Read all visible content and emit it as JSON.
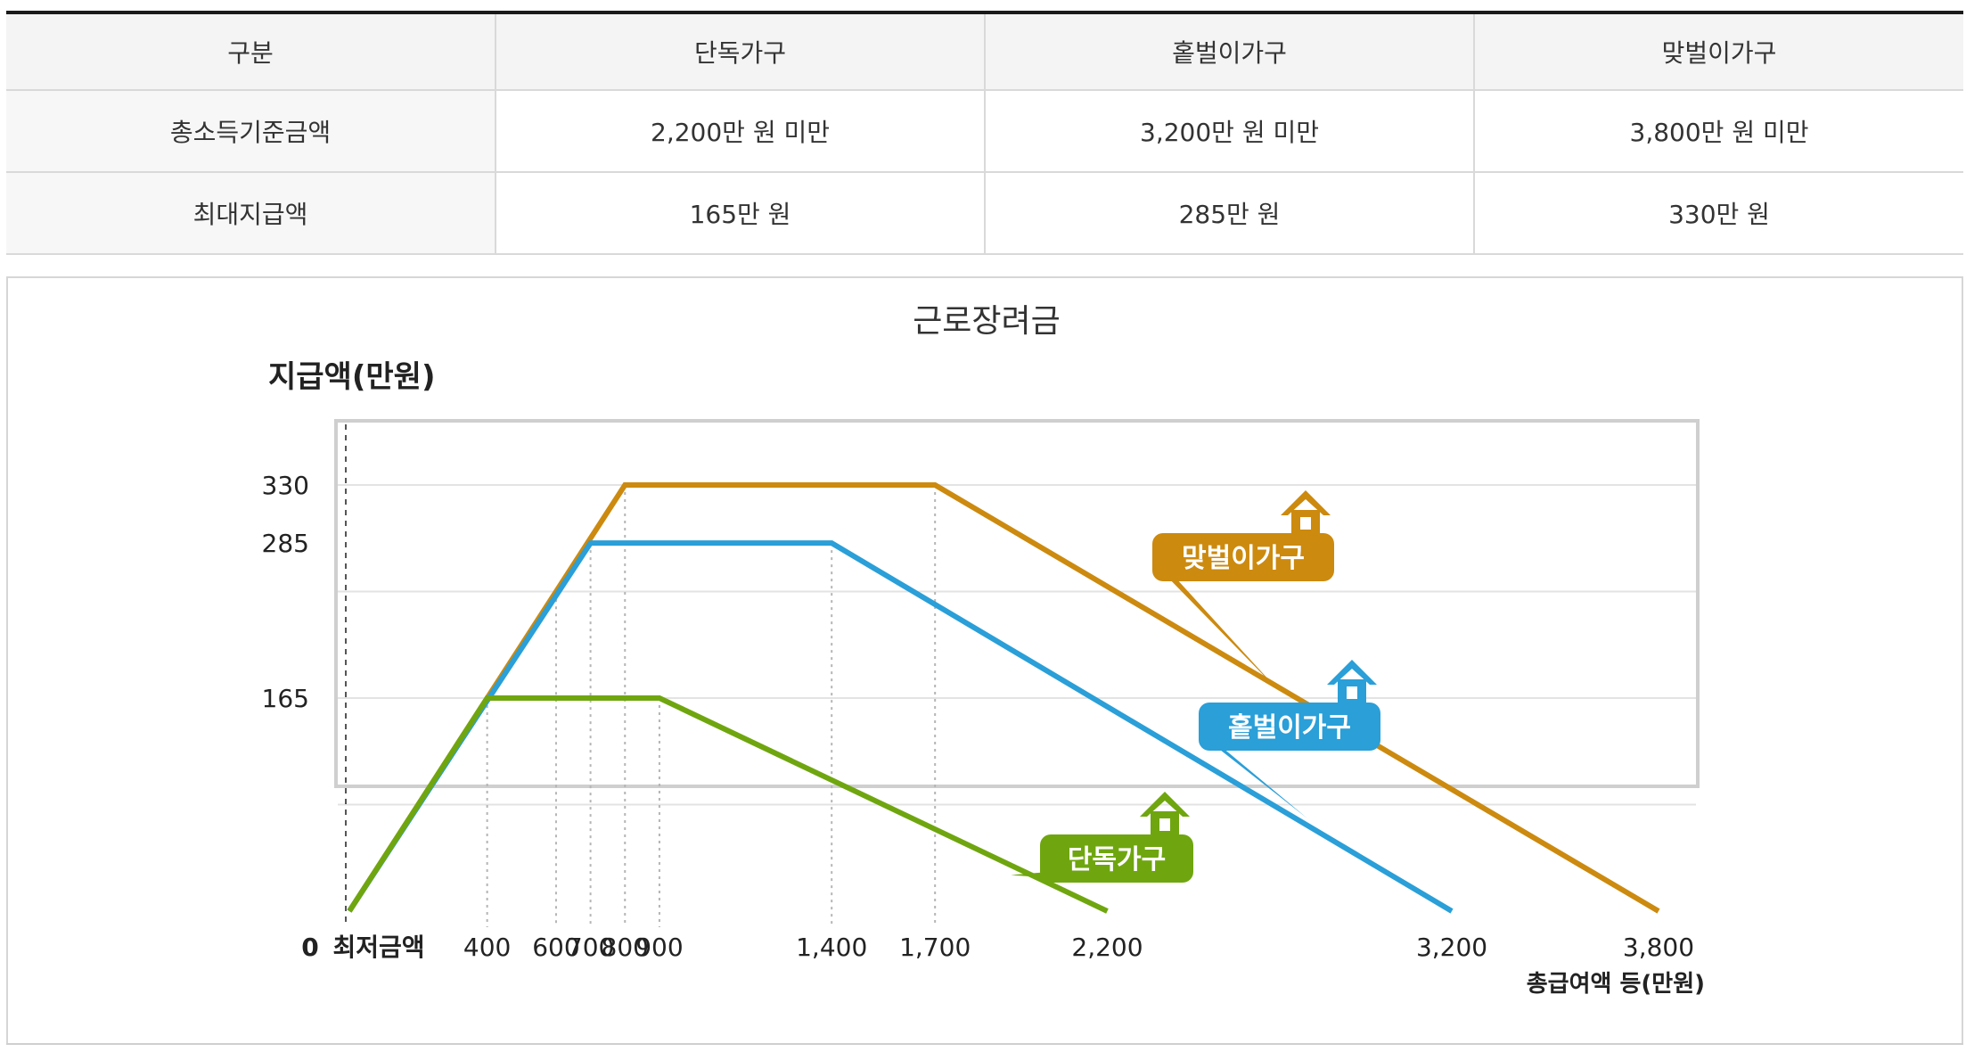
{
  "table": {
    "headers": [
      "구분",
      "단독가구",
      "홑벌이가구",
      "맞벌이가구"
    ],
    "rows": [
      [
        "총소득기준금액",
        "2,200만 원 미만",
        "3,200만 원 미만",
        "3,800만 원 미만"
      ],
      [
        "최대지급액",
        "165만 원",
        "285만 원",
        "330만 원"
      ]
    ]
  },
  "chart_data": {
    "type": "line",
    "title": "근로장려금",
    "ylabel": "지급액(만원)",
    "xlabel": "총급여액 등(만원)",
    "x_origin_label": "최저금액",
    "y_origin_label": "0",
    "x_ticks": [
      400,
      600,
      700,
      800,
      900,
      1400,
      1700,
      2200,
      3200,
      3800
    ],
    "x_tick_labels": [
      "400",
      "600",
      "700",
      "800",
      "900",
      "1,400",
      "1,700",
      "2,200",
      "3,200",
      "3,800"
    ],
    "y_ticks": [
      330,
      285,
      165
    ],
    "y_tick_labels": [
      "330",
      "285",
      "165"
    ],
    "xlim": [
      0,
      3800
    ],
    "ylim": [
      0,
      330
    ],
    "grid": true,
    "series": [
      {
        "name": "맞벌이가구",
        "color": "#cc8a0f",
        "points": [
          [
            0,
            0
          ],
          [
            800,
            330
          ],
          [
            1700,
            330
          ],
          [
            3800,
            0
          ]
        ]
      },
      {
        "name": "홑벌이가구",
        "color": "#2a9fd8",
        "points": [
          [
            0,
            0
          ],
          [
            700,
            285
          ],
          [
            1400,
            285
          ],
          [
            3200,
            0
          ]
        ]
      },
      {
        "name": "단독가구",
        "color": "#6fa60f",
        "points": [
          [
            0,
            0
          ],
          [
            400,
            165
          ],
          [
            900,
            165
          ],
          [
            2200,
            0
          ]
        ]
      }
    ],
    "legend_style": "house-tags beside each line"
  }
}
